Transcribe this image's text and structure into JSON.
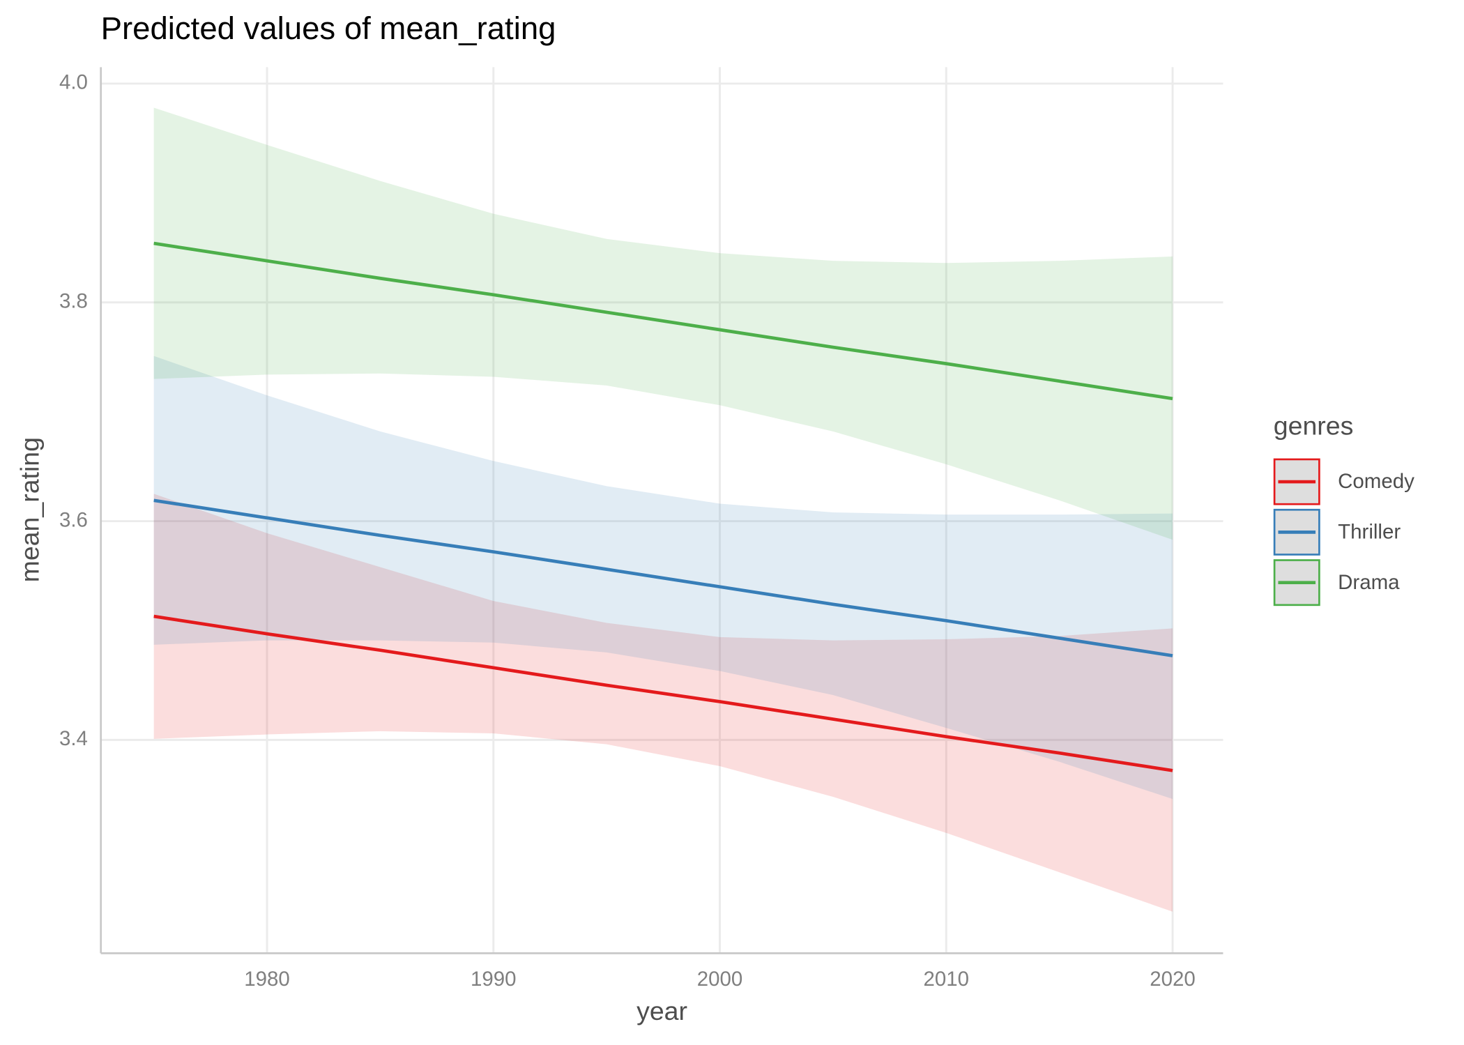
{
  "chart_data": {
    "type": "line",
    "title": "Predicted values of mean_rating",
    "x_label": "year",
    "y_label": "mean_rating",
    "legend_title": "genres",
    "x": [
      1975,
      1980,
      1985,
      1990,
      1995,
      2000,
      2005,
      2010,
      2015,
      2020
    ],
    "series": [
      {
        "name": "Comedy",
        "color": "#e41a1c",
        "values": [
          3.513,
          3.497,
          3.482,
          3.466,
          3.45,
          3.435,
          3.419,
          3.403,
          3.388,
          3.372
        ],
        "lower": [
          3.401,
          3.405,
          3.408,
          3.406,
          3.396,
          3.376,
          3.348,
          3.315,
          3.279,
          3.243
        ],
        "upper": [
          3.625,
          3.589,
          3.558,
          3.527,
          3.507,
          3.494,
          3.491,
          3.492,
          3.495,
          3.502
        ]
      },
      {
        "name": "Thriller",
        "color": "#377eb8",
        "values": [
          3.619,
          3.603,
          3.587,
          3.572,
          3.556,
          3.54,
          3.524,
          3.509,
          3.493,
          3.477
        ],
        "lower": [
          3.487,
          3.491,
          3.491,
          3.489,
          3.48,
          3.463,
          3.441,
          3.411,
          3.38,
          3.346
        ],
        "upper": [
          3.751,
          3.715,
          3.682,
          3.655,
          3.632,
          3.616,
          3.608,
          3.606,
          3.606,
          3.607
        ]
      },
      {
        "name": "Drama",
        "color": "#4daf4a",
        "values": [
          3.854,
          3.838,
          3.822,
          3.807,
          3.791,
          3.775,
          3.759,
          3.744,
          3.728,
          3.712
        ],
        "lower": [
          3.73,
          3.734,
          3.735,
          3.732,
          3.724,
          3.706,
          3.682,
          3.652,
          3.619,
          3.583
        ],
        "upper": [
          3.978,
          3.944,
          3.911,
          3.881,
          3.858,
          3.845,
          3.838,
          3.836,
          3.838,
          3.842
        ]
      }
    ],
    "xlim": [
      1972.66,
      2022.23
    ],
    "xticks": [
      1980,
      1990,
      2000,
      2010,
      2020
    ],
    "ylim": [
      3.205,
      4.015
    ],
    "yticks": [
      3.4,
      3.6,
      3.8,
      {
        "value": 4.0,
        "label": "4.0"
      }
    ],
    "grid": true,
    "legend_position": "right"
  }
}
